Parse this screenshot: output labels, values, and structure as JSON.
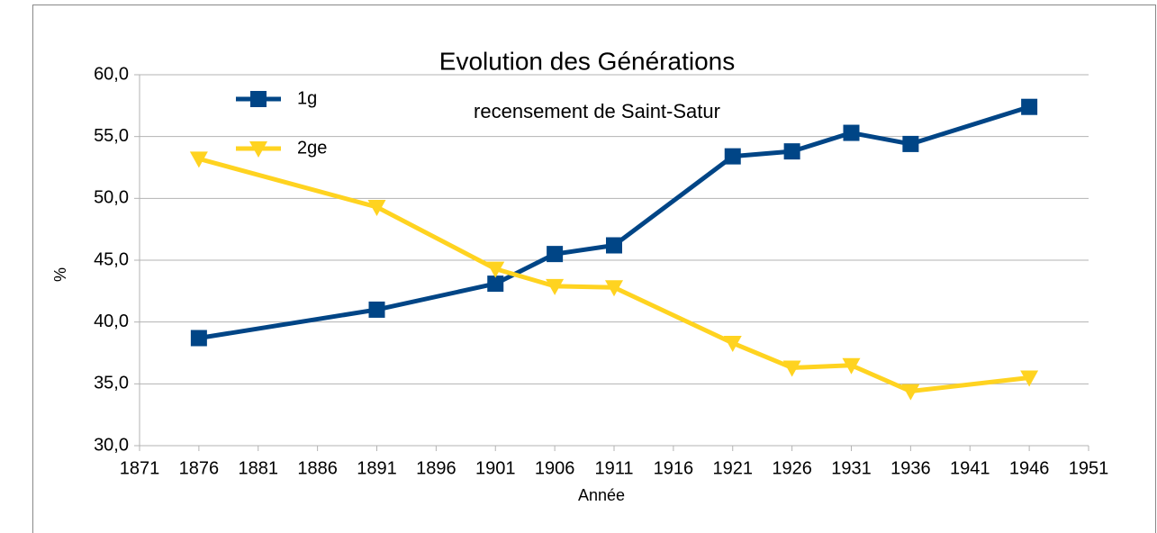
{
  "chart_data": {
    "type": "line",
    "title": "Evolution des Générations",
    "subtitle": "recensement de Saint-Satur",
    "x_label": "Année",
    "y_label": "%",
    "x": [
      1876,
      1891,
      1901,
      1906,
      1911,
      1921,
      1926,
      1931,
      1936,
      1946
    ],
    "series": [
      {
        "name": "1g",
        "color": "#004586",
        "marker": "square",
        "values": [
          38.7,
          41.0,
          43.1,
          45.5,
          46.2,
          53.4,
          53.8,
          55.3,
          54.4,
          57.4
        ]
      },
      {
        "name": "2ge",
        "color": "#ffd320",
        "marker": "triangle-down",
        "values": [
          53.2,
          49.3,
          44.3,
          42.9,
          42.8,
          38.3,
          36.3,
          36.5,
          34.4,
          35.5
        ]
      }
    ],
    "xlim": [
      1871,
      1951
    ],
    "xticks": [
      1871,
      1876,
      1881,
      1886,
      1891,
      1896,
      1901,
      1906,
      1911,
      1916,
      1921,
      1926,
      1931,
      1936,
      1941,
      1946,
      1951
    ],
    "ylim": [
      30,
      60
    ],
    "yticks": [
      {
        "value": 30,
        "label": "30,0"
      },
      {
        "value": 35,
        "label": "35,0"
      },
      {
        "value": 40,
        "label": "40,0"
      },
      {
        "value": 45,
        "label": "45,0"
      },
      {
        "value": 50,
        "label": "50,0"
      },
      {
        "value": 55,
        "label": "55,0"
      },
      {
        "value": 60,
        "label": "60,0"
      }
    ],
    "grid": true,
    "legend": "top-left"
  }
}
